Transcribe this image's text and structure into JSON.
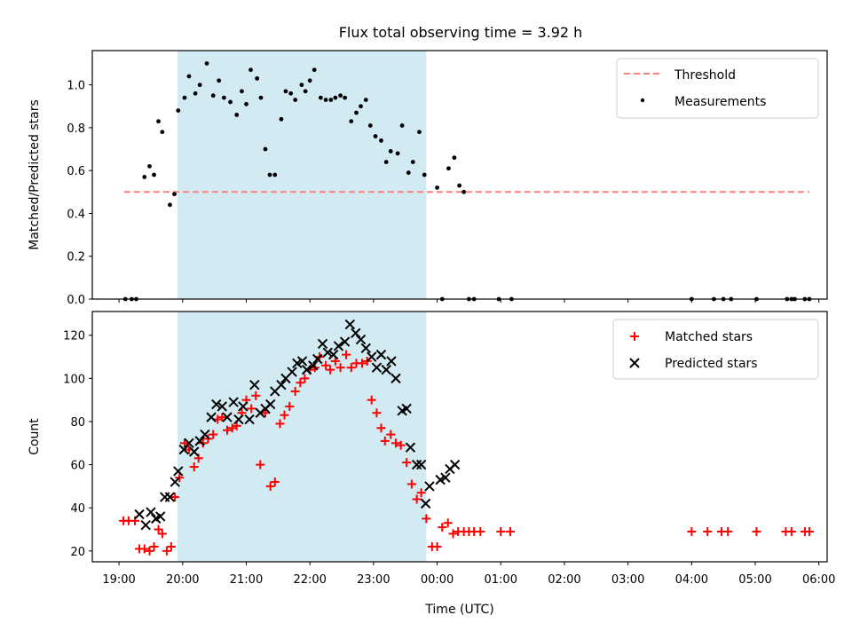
{
  "title": "Flux total observing time = 3.92 h",
  "colors": {
    "span": "#add8e6",
    "threshold": "#ff7f7f",
    "matched": "#ff0000",
    "predicted": "#000000",
    "measurements": "#000000"
  },
  "chart_data": [
    {
      "type": "scatter",
      "panel": "top",
      "ylabel": "Matched/Predicted stars",
      "ylim": [
        0,
        1.16
      ],
      "yticks": [
        "0.0",
        "0.2",
        "0.4",
        "0.6",
        "0.8",
        "1.0"
      ],
      "xlim": [
        18.58,
        30.13
      ],
      "observing_span": [
        19.92,
        23.83
      ],
      "legend": {
        "position": "top-right",
        "entries": [
          "Threshold",
          "Measurements"
        ]
      },
      "threshold": {
        "name": "Threshold",
        "x": [
          19.08,
          29.85
        ],
        "y": 0.5
      },
      "series": [
        {
          "name": "Measurements",
          "x": [
            19.1,
            19.2,
            19.27,
            19.4,
            19.48,
            19.55,
            19.62,
            19.68,
            19.8,
            19.87,
            19.93,
            20.03,
            20.1,
            20.2,
            20.27,
            20.38,
            20.48,
            20.57,
            20.65,
            20.75,
            20.85,
            20.93,
            21.0,
            21.07,
            21.17,
            21.23,
            21.3,
            21.37,
            21.45,
            21.55,
            21.62,
            21.7,
            21.77,
            21.87,
            21.93,
            22.0,
            22.07,
            22.17,
            22.25,
            22.33,
            22.4,
            22.48,
            22.55,
            22.65,
            22.73,
            22.8,
            22.88,
            22.95,
            23.03,
            23.12,
            23.2,
            23.27,
            23.38,
            23.45,
            23.55,
            23.62,
            23.72,
            23.8,
            24.0,
            24.08,
            24.18,
            24.27,
            24.35,
            24.42,
            24.5,
            24.58,
            24.97,
            25.17,
            28.0,
            28.35,
            28.5,
            28.62,
            29.02,
            29.5,
            29.57,
            29.62,
            29.78,
            29.85
          ],
          "y": [
            0,
            0,
            0,
            0.57,
            0.62,
            0.58,
            0.83,
            0.78,
            0.44,
            0.49,
            0.88,
            0.94,
            1.04,
            0.96,
            1.0,
            1.1,
            0.95,
            1.02,
            0.94,
            0.92,
            0.86,
            0.97,
            0.91,
            1.07,
            1.03,
            0.94,
            0.7,
            0.58,
            0.58,
            0.84,
            0.97,
            0.96,
            0.93,
            1.0,
            0.97,
            1.02,
            1.07,
            0.94,
            0.93,
            0.93,
            0.94,
            0.95,
            0.94,
            0.83,
            0.87,
            0.9,
            0.93,
            0.81,
            0.76,
            0.74,
            0.64,
            0.69,
            0.68,
            0.81,
            0.59,
            0.64,
            0.78,
            0.58,
            0.52,
            0,
            0.61,
            0.66,
            0.53,
            0.5,
            0,
            0,
            0,
            0,
            0,
            0,
            0,
            0,
            0,
            0,
            0,
            0,
            0,
            0
          ]
        }
      ]
    },
    {
      "type": "scatter",
      "panel": "bottom",
      "ylabel": "Count",
      "xlabel": "Time (UTC)",
      "ylim": [
        15,
        131
      ],
      "yticks": [
        "20",
        "40",
        "60",
        "80",
        "100",
        "120"
      ],
      "xlim": [
        18.58,
        30.13
      ],
      "xticks": [
        "19:00",
        "20:00",
        "21:00",
        "22:00",
        "23:00",
        "00:00",
        "01:00",
        "02:00",
        "03:00",
        "04:00",
        "05:00",
        "06:00"
      ],
      "observing_span": [
        19.92,
        23.83
      ],
      "legend": {
        "position": "top-right",
        "entries": [
          "Matched stars",
          "Predicted stars"
        ]
      },
      "series": [
        {
          "name": "Matched stars",
          "marker": "plus",
          "x": [
            19.07,
            19.15,
            19.25,
            19.32,
            19.4,
            19.48,
            19.55,
            19.62,
            19.68,
            19.75,
            19.82,
            19.88,
            19.95,
            20.03,
            20.1,
            20.18,
            20.25,
            20.32,
            20.4,
            20.48,
            20.55,
            20.62,
            20.7,
            20.78,
            20.85,
            20.93,
            21.0,
            21.08,
            21.15,
            21.22,
            21.3,
            21.38,
            21.45,
            21.53,
            21.6,
            21.68,
            21.77,
            21.85,
            21.92,
            22.0,
            22.08,
            22.15,
            22.25,
            22.32,
            22.4,
            22.48,
            22.57,
            22.65,
            22.73,
            22.82,
            22.9,
            22.97,
            23.05,
            23.12,
            23.18,
            23.27,
            23.35,
            23.43,
            23.52,
            23.6,
            23.68,
            23.75,
            23.83,
            23.92,
            24.0,
            24.08,
            24.17,
            24.25,
            24.33,
            24.42,
            24.5,
            24.58,
            24.68,
            25.0,
            25.15,
            28.0,
            28.25,
            28.47,
            28.57,
            29.02,
            29.48,
            29.57,
            29.78,
            29.85
          ],
          "y": [
            34,
            34,
            34,
            21,
            21,
            20,
            22,
            30,
            28,
            20,
            22,
            45,
            54,
            70,
            67,
            59,
            63,
            70,
            72,
            74,
            81,
            82,
            76,
            77,
            78,
            84,
            90,
            86,
            92,
            60,
            84,
            50,
            52,
            79,
            83,
            87,
            94,
            98,
            100,
            104,
            105,
            110,
            106,
            104,
            108,
            105,
            111,
            105,
            107,
            107,
            108,
            90,
            84,
            77,
            71,
            74,
            70,
            69,
            61,
            51,
            44,
            47,
            35,
            22,
            22,
            31,
            33,
            28,
            29,
            29,
            29,
            29,
            29,
            29,
            29,
            29,
            29,
            29,
            29,
            29,
            29,
            29,
            29,
            29
          ]
        },
        {
          "name": "Predicted stars",
          "marker": "x",
          "x": [
            19.32,
            19.42,
            19.5,
            19.58,
            19.65,
            19.72,
            19.8,
            19.88,
            19.93,
            20.02,
            20.1,
            20.18,
            20.27,
            20.35,
            20.45,
            20.53,
            20.62,
            20.7,
            20.8,
            20.88,
            20.95,
            21.05,
            21.13,
            21.22,
            21.3,
            21.38,
            21.45,
            21.55,
            21.62,
            21.72,
            21.8,
            21.88,
            21.95,
            22.05,
            22.12,
            22.2,
            22.28,
            22.37,
            22.45,
            22.55,
            22.63,
            22.72,
            22.8,
            22.88,
            22.97,
            23.05,
            23.12,
            23.2,
            23.28,
            23.35,
            23.45,
            23.52,
            23.58,
            23.68,
            23.75,
            23.82,
            23.88,
            24.05,
            24.13,
            24.2,
            24.28
          ],
          "y": [
            37,
            32,
            38,
            35,
            36,
            45,
            45,
            52,
            57,
            67,
            70,
            66,
            71,
            74,
            82,
            88,
            87,
            82,
            89,
            81,
            87,
            81,
            97,
            84,
            86,
            88,
            94,
            97,
            100,
            103,
            107,
            108,
            104,
            106,
            109,
            116,
            112,
            111,
            115,
            117,
            125,
            121,
            118,
            114,
            110,
            105,
            111,
            104,
            108,
            100,
            85,
            86,
            68,
            60,
            60,
            42,
            50,
            53,
            54,
            58,
            60
          ]
        }
      ]
    }
  ]
}
